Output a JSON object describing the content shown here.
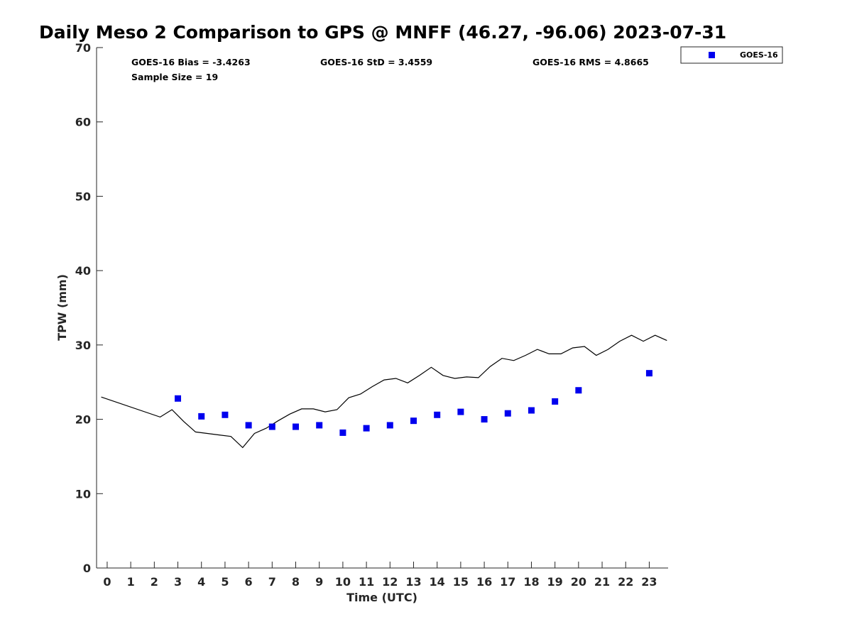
{
  "chart_data": {
    "type": "scatter",
    "title": "Daily Meso 2 Comparison to GPS @ MNFF (46.27, -96.06) 2023-07-31",
    "xlabel": "Time (UTC)",
    "ylabel": "TPW (mm)",
    "xlim": [
      -0.45,
      23.8
    ],
    "ylim": [
      0,
      70
    ],
    "x_ticks": [
      0,
      1,
      2,
      3,
      4,
      5,
      6,
      7,
      8,
      9,
      10,
      11,
      12,
      13,
      14,
      15,
      16,
      17,
      18,
      19,
      20,
      21,
      22,
      23
    ],
    "y_ticks": [
      0,
      10,
      20,
      30,
      40,
      50,
      60,
      70
    ],
    "grid": false,
    "legend_position": "top-right",
    "stats": {
      "bias": "GOES-16 Bias = -3.4263",
      "std": "GOES-16 StD = 3.4559",
      "rms": "GOES-16 RMS = 4.8665",
      "sample": "Sample Size = 19"
    },
    "series": [
      {
        "name": "GOES-16",
        "kind": "scatter",
        "marker": "square",
        "color": "#0000ee",
        "x": [
          3,
          4,
          5,
          6,
          7,
          8,
          9,
          10,
          11,
          12,
          13,
          14,
          15,
          16,
          17,
          18,
          19,
          20,
          23
        ],
        "y": [
          22.8,
          20.4,
          20.6,
          19.2,
          19.0,
          19.0,
          19.2,
          18.2,
          18.8,
          19.2,
          19.8,
          20.6,
          21.0,
          20.0,
          20.8,
          21.2,
          22.4,
          23.9,
          26.2
        ]
      },
      {
        "kind": "line",
        "color": "#000000",
        "x": [
          -0.25,
          2.25,
          2.75,
          3.25,
          3.75,
          4.25,
          4.75,
          5.25,
          5.75,
          6.25,
          6.75,
          7.25,
          7.75,
          8.25,
          8.75,
          9.25,
          9.75,
          10.25,
          10.75,
          11.25,
          11.75,
          12.25,
          12.75,
          13.25,
          13.75,
          14.25,
          14.75,
          15.25,
          15.75,
          16.25,
          16.75,
          17.25,
          17.75,
          18.25,
          18.75,
          19.25,
          19.75,
          20.25,
          20.75,
          21.25,
          21.75,
          22.25,
          22.75,
          23.25,
          23.75
        ],
        "y": [
          23.0,
          20.3,
          21.3,
          19.7,
          18.3,
          18.1,
          17.9,
          17.7,
          16.2,
          18.1,
          18.8,
          19.8,
          20.7,
          21.4,
          21.4,
          21.0,
          21.3,
          22.9,
          23.4,
          24.4,
          25.3,
          25.5,
          24.9,
          25.9,
          27.0,
          25.9,
          25.5,
          25.7,
          25.6,
          27.1,
          28.2,
          27.9,
          28.6,
          29.4,
          28.8,
          28.8,
          29.6,
          29.8,
          28.6,
          29.4,
          30.5,
          31.3,
          30.5,
          31.3,
          30.6
        ]
      }
    ]
  }
}
